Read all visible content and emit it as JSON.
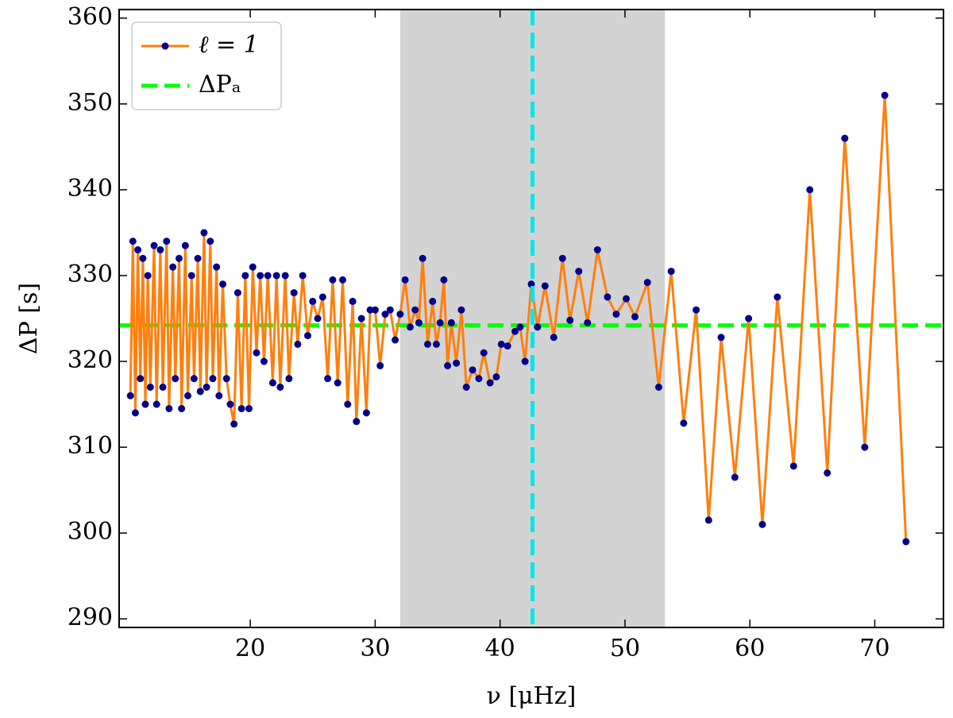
{
  "chart_data": {
    "type": "line",
    "xlabel": "ν [μHz]",
    "ylabel": "ΔP [s]",
    "xlim": [
      9.5,
      75.5
    ],
    "ylim": [
      289,
      361
    ],
    "xticks": [
      20,
      30,
      40,
      50,
      60,
      70
    ],
    "yticks": [
      290,
      300,
      310,
      320,
      330,
      340,
      350,
      360
    ],
    "legend": "upper left",
    "span": [
      32,
      53.2
    ],
    "span_color": "#d3d3d3",
    "vline": {
      "x": 42.6,
      "color": "#00e5ee"
    },
    "hlines": [
      {
        "name": "ΔPₐ",
        "y": 324.2,
        "color": "#00ff00"
      }
    ],
    "series": [
      {
        "name": "ℓ = 1",
        "color": "#ff7f0e",
        "marker_color": "#00008b",
        "x": [
          10.4,
          10.6,
          10.8,
          11.0,
          11.2,
          11.4,
          11.6,
          11.8,
          12.0,
          12.3,
          12.5,
          12.8,
          13.0,
          13.3,
          13.5,
          13.8,
          14.0,
          14.3,
          14.5,
          14.8,
          15.0,
          15.3,
          15.5,
          15.8,
          16.0,
          16.3,
          16.5,
          16.8,
          17.0,
          17.3,
          17.5,
          17.8,
          18.1,
          18.4,
          18.7,
          19.0,
          19.3,
          19.6,
          19.9,
          20.2,
          20.5,
          20.8,
          21.1,
          21.4,
          21.8,
          22.1,
          22.4,
          22.8,
          23.1,
          23.5,
          23.8,
          24.2,
          24.6,
          25.0,
          25.4,
          25.8,
          26.2,
          26.6,
          27.0,
          27.4,
          27.8,
          28.2,
          28.5,
          28.9,
          29.3,
          29.6,
          30.0,
          30.4,
          30.8,
          31.2,
          31.6,
          32.0,
          32.4,
          32.8,
          33.2,
          33.5,
          33.8,
          34.2,
          34.6,
          34.9,
          35.2,
          35.5,
          35.8,
          36.1,
          36.5,
          36.9,
          37.3,
          37.8,
          38.3,
          38.7,
          39.2,
          39.7,
          40.1,
          40.6,
          41.2,
          41.6,
          42.0,
          42.5,
          43.0,
          43.6,
          44.3,
          45.0,
          45.6,
          46.3,
          47.0,
          47.8,
          48.6,
          49.3,
          50.1,
          50.8,
          51.8,
          52.7,
          53.7,
          54.7,
          55.7,
          56.7,
          57.7,
          58.8,
          59.9,
          61.0,
          62.2,
          63.5,
          64.8,
          66.2,
          67.6,
          69.2,
          70.8,
          72.5
        ],
        "values": [
          316,
          334,
          314,
          333,
          318,
          332,
          315,
          330,
          317,
          333.5,
          315,
          333,
          317,
          334,
          314.5,
          331,
          318,
          332,
          314.5,
          333.5,
          316,
          330,
          318,
          332,
          316.5,
          335,
          317,
          334,
          318,
          331,
          316,
          329,
          318,
          315,
          312.7,
          328,
          314.5,
          330,
          314.5,
          331,
          321,
          330,
          320,
          330,
          317.5,
          330,
          317,
          330,
          318,
          328,
          322,
          330,
          323,
          327,
          325,
          327.5,
          318,
          329.5,
          317.5,
          329.5,
          315,
          327,
          313,
          325,
          314,
          326,
          326,
          319.5,
          325.5,
          326,
          322.5,
          325.5,
          329.5,
          324,
          326,
          324.5,
          332,
          322,
          327,
          322,
          324.5,
          329.5,
          319.5,
          324.5,
          319.8,
          326,
          317,
          319,
          318,
          321,
          317.5,
          318.2,
          322,
          321.8,
          323.5,
          324,
          320,
          329,
          324,
          328.8,
          322.8,
          332,
          324.8,
          330.5,
          324.5,
          333,
          327.5,
          325.5,
          327.3,
          325.2,
          329.2,
          317,
          330.5,
          312.8,
          326,
          301.5,
          322.8,
          306.5,
          325,
          301,
          327.5,
          307.8,
          340,
          307,
          346,
          310,
          351,
          299
        ]
      }
    ]
  }
}
